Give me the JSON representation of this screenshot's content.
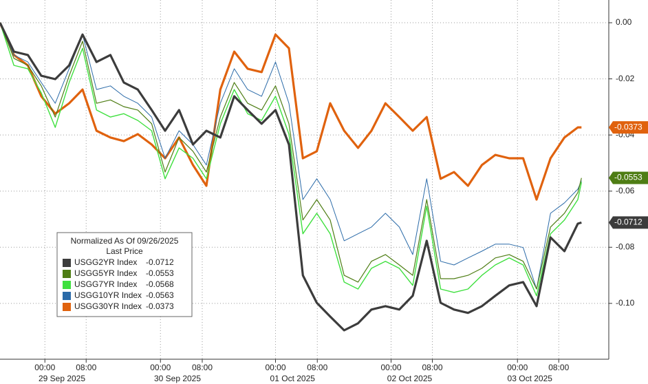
{
  "chart_data": {
    "type": "line",
    "x": [
      -8.7,
      -6.0,
      -3.3,
      -0.7,
      2.0,
      4.7,
      7.3,
      10.0,
      12.7,
      15.3,
      18.0,
      20.7,
      23.3,
      26.0,
      28.7,
      31.3,
      34.0,
      36.7,
      39.3,
      42.0,
      44.7,
      47.3,
      50.0,
      52.7,
      55.3,
      58.0,
      60.7,
      63.3,
      66.0,
      68.7,
      71.3,
      74.0,
      76.7,
      79.3,
      82.0,
      84.7,
      87.3,
      90.0,
      92.7,
      95.3,
      98.0,
      100.7,
      103.3,
      104.0
    ],
    "series": [
      {
        "name": "USGG2YR Index",
        "last_price": "-0.0712",
        "color": "#3c3c3c",
        "width": 3.2,
        "values": [
          0,
          -0.0103,
          -0.0115,
          -0.0189,
          -0.0201,
          -0.0152,
          -0.0042,
          -0.014,
          -0.0115,
          -0.0213,
          -0.0238,
          -0.0311,
          -0.0385,
          -0.0311,
          -0.0434,
          -0.0385,
          -0.0409,
          -0.0262,
          -0.0311,
          -0.036,
          -0.0311,
          -0.0434,
          -0.09,
          -0.0998,
          -0.1047,
          -0.1096,
          -0.1071,
          -0.1022,
          -0.101,
          -0.1022,
          -0.0973,
          -0.0777,
          -0.0998,
          -0.1022,
          -0.1034,
          -0.101,
          -0.0973,
          -0.0936,
          -0.0924,
          -0.101,
          -0.0765,
          -0.0814,
          -0.0716,
          -0.0712
        ]
      },
      {
        "name": "USGG5YR Index",
        "last_price": "-0.0553",
        "color": "#4e7d14",
        "width": 1.2,
        "values": [
          0,
          -0.0127,
          -0.0152,
          -0.0225,
          -0.0336,
          -0.0189,
          -0.0066,
          -0.0287,
          -0.0275,
          -0.0299,
          -0.0311,
          -0.036,
          -0.0532,
          -0.0409,
          -0.0458,
          -0.0532,
          -0.0336,
          -0.0213,
          -0.0287,
          -0.0311,
          -0.0225,
          -0.036,
          -0.0703,
          -0.063,
          -0.0703,
          -0.09,
          -0.0924,
          -0.085,
          -0.0826,
          -0.0863,
          -0.09,
          -0.063,
          -0.0912,
          -0.0912,
          -0.09,
          -0.0875,
          -0.0838,
          -0.0826,
          -0.085,
          -0.0949,
          -0.0728,
          -0.0679,
          -0.0605,
          -0.0553
        ]
      },
      {
        "name": "USGG7YR Index",
        "last_price": "-0.0568",
        "color": "#3ee03e",
        "width": 1.4,
        "values": [
          0,
          -0.0152,
          -0.0164,
          -0.025,
          -0.0373,
          -0.0213,
          -0.0091,
          -0.0311,
          -0.0336,
          -0.0324,
          -0.0348,
          -0.0385,
          -0.0556,
          -0.0446,
          -0.0483,
          -0.0556,
          -0.036,
          -0.0238,
          -0.0324,
          -0.0348,
          -0.0262,
          -0.0397,
          -0.0752,
          -0.0679,
          -0.0752,
          -0.0924,
          -0.0949,
          -0.0875,
          -0.085,
          -0.0875,
          -0.0936,
          -0.0654,
          -0.0949,
          -0.0961,
          -0.0949,
          -0.09,
          -0.0863,
          -0.0838,
          -0.0863,
          -0.0973,
          -0.0752,
          -0.0703,
          -0.063,
          -0.0568
        ]
      },
      {
        "name": "USGG10YR Index",
        "last_price": "-0.0563",
        "color": "#2a6aa8",
        "width": 1.0,
        "values": [
          0,
          -0.0115,
          -0.014,
          -0.0213,
          -0.0287,
          -0.0164,
          -0.0042,
          -0.0238,
          -0.0225,
          -0.0262,
          -0.0287,
          -0.0336,
          -0.0483,
          -0.0385,
          -0.0434,
          -0.0507,
          -0.0287,
          -0.0164,
          -0.0238,
          -0.0262,
          -0.014,
          -0.0287,
          -0.063,
          -0.0556,
          -0.063,
          -0.0777,
          -0.0752,
          -0.0728,
          -0.0679,
          -0.0728,
          -0.0826,
          -0.0556,
          -0.085,
          -0.0863,
          -0.0838,
          -0.0814,
          -0.0789,
          -0.0789,
          -0.0801,
          -0.0949,
          -0.0679,
          -0.0642,
          -0.0593,
          -0.0563
        ]
      },
      {
        "name": "USGG30YR Index",
        "last_price": "-0.0373",
        "color": "#e0620e",
        "width": 3.2,
        "values": [
          0,
          -0.0115,
          -0.0152,
          -0.0262,
          -0.0324,
          -0.0287,
          -0.0238,
          -0.0385,
          -0.0409,
          -0.0422,
          -0.0397,
          -0.0434,
          -0.0483,
          -0.0409,
          -0.0507,
          -0.0581,
          -0.0238,
          -0.0103,
          -0.0164,
          -0.0176,
          -0.0042,
          -0.0091,
          -0.0483,
          -0.0458,
          -0.0287,
          -0.0385,
          -0.0446,
          -0.0385,
          -0.0287,
          -0.0336,
          -0.0385,
          -0.0336,
          -0.0556,
          -0.0532,
          -0.0581,
          -0.0507,
          -0.0471,
          -0.0483,
          -0.0483,
          -0.063,
          -0.0483,
          -0.0409,
          -0.0373,
          -0.0373
        ]
      }
    ],
    "xlim": [
      -8.7,
      109.3
    ],
    "ylim": [
      -0.1199,
      0.0081
    ],
    "yticks": [
      {
        "value": 0,
        "label": "0.00"
      },
      -0.02,
      -0.04,
      -0.06,
      -0.08,
      {
        "value": -0.1,
        "label": "-0.10"
      }
    ],
    "xticks": [
      {
        "value": 0,
        "label": "00:00"
      },
      {
        "value": 8,
        "label": "08:00"
      },
      {
        "value": 22.4,
        "label": "00:00"
      },
      {
        "value": 30.5,
        "label": "08:00"
      },
      {
        "value": 44.7,
        "label": "00:00"
      },
      {
        "value": 52.8,
        "label": "08:00"
      },
      {
        "value": 67.1,
        "label": "00:00"
      },
      {
        "value": 75.1,
        "label": "08:00"
      },
      {
        "value": 91.6,
        "label": "00:00"
      },
      {
        "value": 99.6,
        "label": "08:00"
      }
    ],
    "date_ticks": [
      {
        "value": 3.3,
        "label": "29 Sep 2025"
      },
      {
        "value": 25.7,
        "label": "30 Sep 2025"
      },
      {
        "value": 48,
        "label": "01 Oct 2025"
      },
      {
        "value": 70.7,
        "label": "02 Oct 2025"
      },
      {
        "value": 94,
        "label": "03 Oct 2025"
      }
    ],
    "legend": {
      "title": "Normalized As Of 09/26/2025",
      "subtitle": "Last Price",
      "position": "lower left"
    },
    "tagged_series": [
      4,
      1,
      0
    ],
    "grid": true
  }
}
